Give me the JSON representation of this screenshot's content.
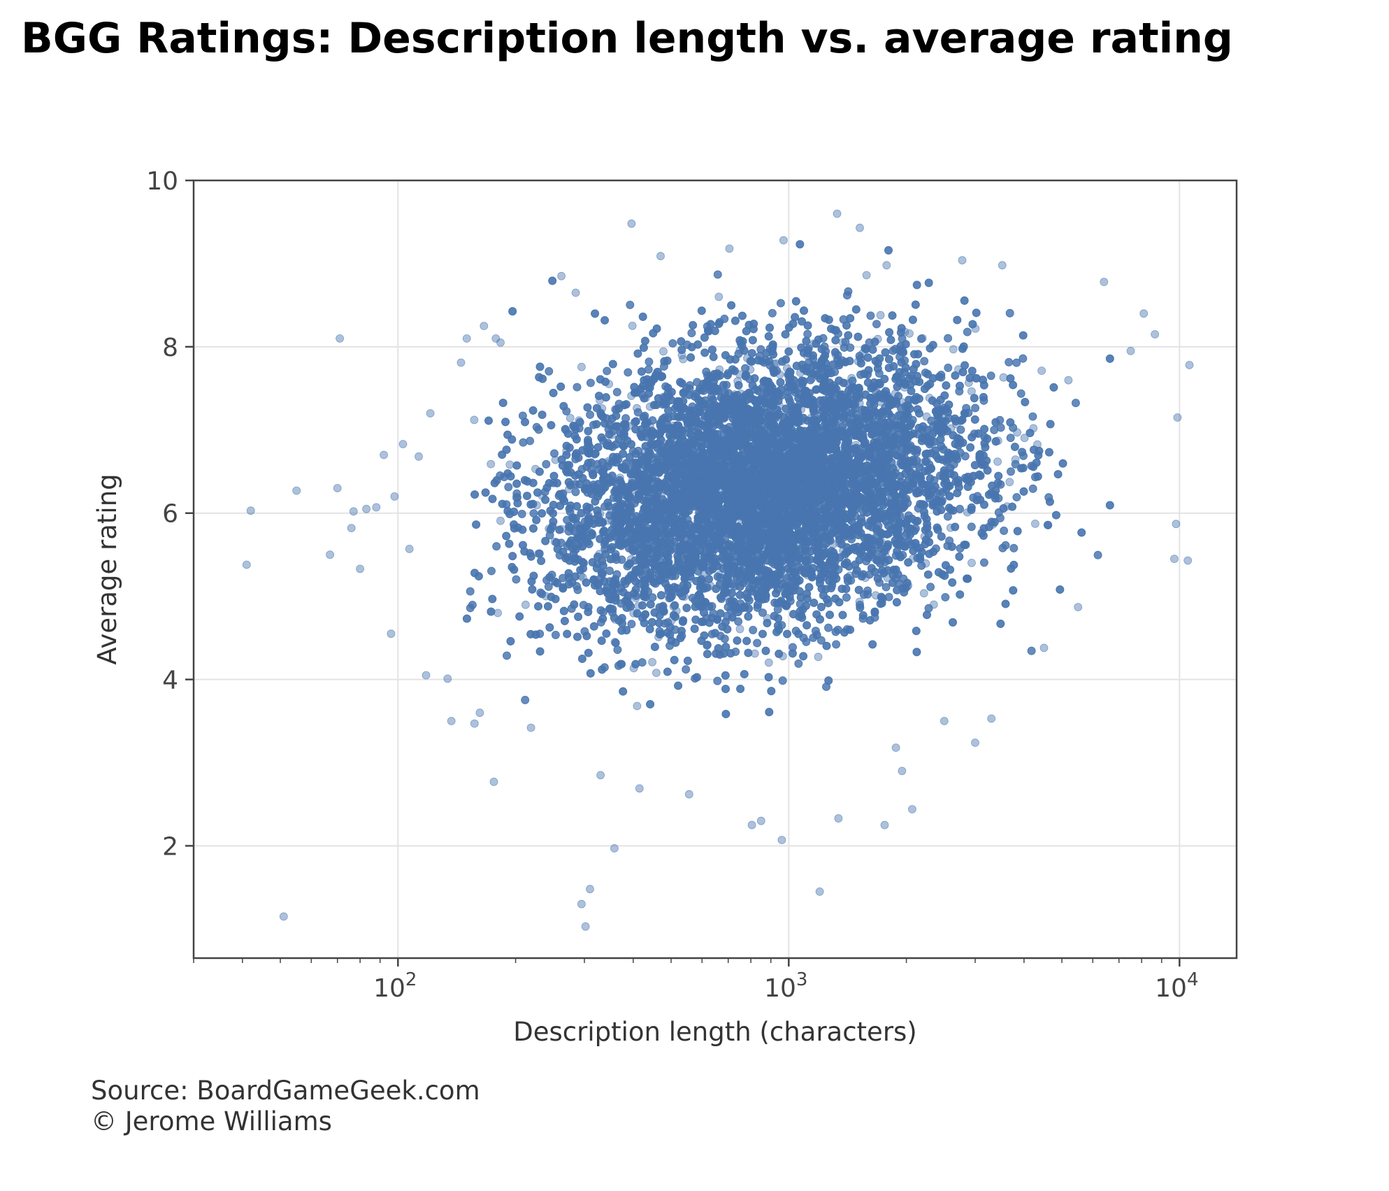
{
  "chart_data": {
    "type": "scatter",
    "title": "BGG Ratings: Description length vs. average rating",
    "xlabel": "Description length (characters)",
    "ylabel": "Average rating",
    "x_scale": "log",
    "xlim": [
      30,
      14000
    ],
    "ylim": [
      0.65,
      10
    ],
    "x_ticks": [
      100,
      1000,
      10000
    ],
    "x_tick_labels": [
      {
        "base": "10",
        "exp": "2"
      },
      {
        "base": "10",
        "exp": "3"
      },
      {
        "base": "10",
        "exp": "4"
      }
    ],
    "y_ticks": [
      2,
      4,
      6,
      8,
      10
    ],
    "y_tick_labels": [
      "2",
      "4",
      "6",
      "8",
      "10"
    ],
    "grid": true,
    "point_color": "#4a76b0",
    "point_opacity": 0.45,
    "dense_cloud": {
      "description": "approx. 20000 games; log10(length) roughly normal, center ~850 characters; rating roughly normal, center ~6.3",
      "log10_x_mean": 2.93,
      "log10_x_sd": 0.27,
      "y_mean": 6.3,
      "y_sd": 0.82,
      "correlation": 0.22,
      "n": 20000,
      "x_range": [
        150,
        7000
      ],
      "y_range": [
        2.5,
        9.5
      ]
    },
    "series": [
      {
        "points": [
          [
            42,
            6.03
          ],
          [
            41,
            5.38
          ],
          [
            51,
            1.15
          ],
          [
            55,
            6.27
          ],
          [
            67,
            5.5
          ],
          [
            70,
            6.3
          ],
          [
            71,
            8.1
          ],
          [
            76,
            5.82
          ],
          [
            77,
            6.02
          ],
          [
            80,
            5.33
          ],
          [
            83,
            6.05
          ],
          [
            88,
            6.07
          ],
          [
            92,
            6.7
          ],
          [
            96,
            4.55
          ],
          [
            98,
            6.2
          ],
          [
            103,
            6.83
          ],
          [
            107,
            5.57
          ],
          [
            113,
            6.68
          ],
          [
            118,
            4.05
          ],
          [
            121,
            7.2
          ],
          [
            134,
            4.01
          ],
          [
            137,
            3.5
          ],
          [
            145,
            7.81
          ],
          [
            150,
            8.1
          ],
          [
            157,
            3.47
          ],
          [
            162,
            3.6
          ],
          [
            166,
            8.25
          ],
          [
            176,
            2.77
          ],
          [
            178,
            8.1
          ],
          [
            183,
            8.05
          ],
          [
            219,
            3.42
          ],
          [
            262,
            8.85
          ],
          [
            285,
            8.65
          ],
          [
            295,
            1.3
          ],
          [
            302,
            1.03
          ],
          [
            310,
            1.48
          ],
          [
            330,
            2.85
          ],
          [
            358,
            1.97
          ],
          [
            396,
            9.48
          ],
          [
            415,
            2.69
          ],
          [
            470,
            9.09
          ],
          [
            556,
            2.62
          ],
          [
            705,
            9.18
          ],
          [
            805,
            2.25
          ],
          [
            850,
            2.3
          ],
          [
            960,
            2.07
          ],
          [
            970,
            9.28
          ],
          [
            1200,
            1.45
          ],
          [
            1330,
            9.6
          ],
          [
            1340,
            2.33
          ],
          [
            1520,
            9.43
          ],
          [
            1760,
            2.25
          ],
          [
            1780,
            8.98
          ],
          [
            2070,
            2.44
          ],
          [
            2780,
            9.04
          ],
          [
            3520,
            8.98
          ],
          [
            6410,
            8.78
          ],
          [
            7500,
            7.95
          ],
          [
            8100,
            8.4
          ],
          [
            8650,
            8.15
          ],
          [
            9700,
            5.45
          ],
          [
            9800,
            5.87
          ],
          [
            9880,
            7.15
          ],
          [
            10500,
            5.43
          ],
          [
            10600,
            7.78
          ],
          [
            5500,
            4.87
          ],
          [
            4500,
            4.38
          ],
          [
            3300,
            3.53
          ],
          [
            3000,
            3.24
          ],
          [
            2500,
            3.5
          ],
          [
            1950,
            2.9
          ],
          [
            1880,
            3.18
          ]
        ]
      }
    ]
  },
  "source": {
    "line1": "Source: BoardGameGeek.com",
    "line2": "© Jerome Williams"
  }
}
